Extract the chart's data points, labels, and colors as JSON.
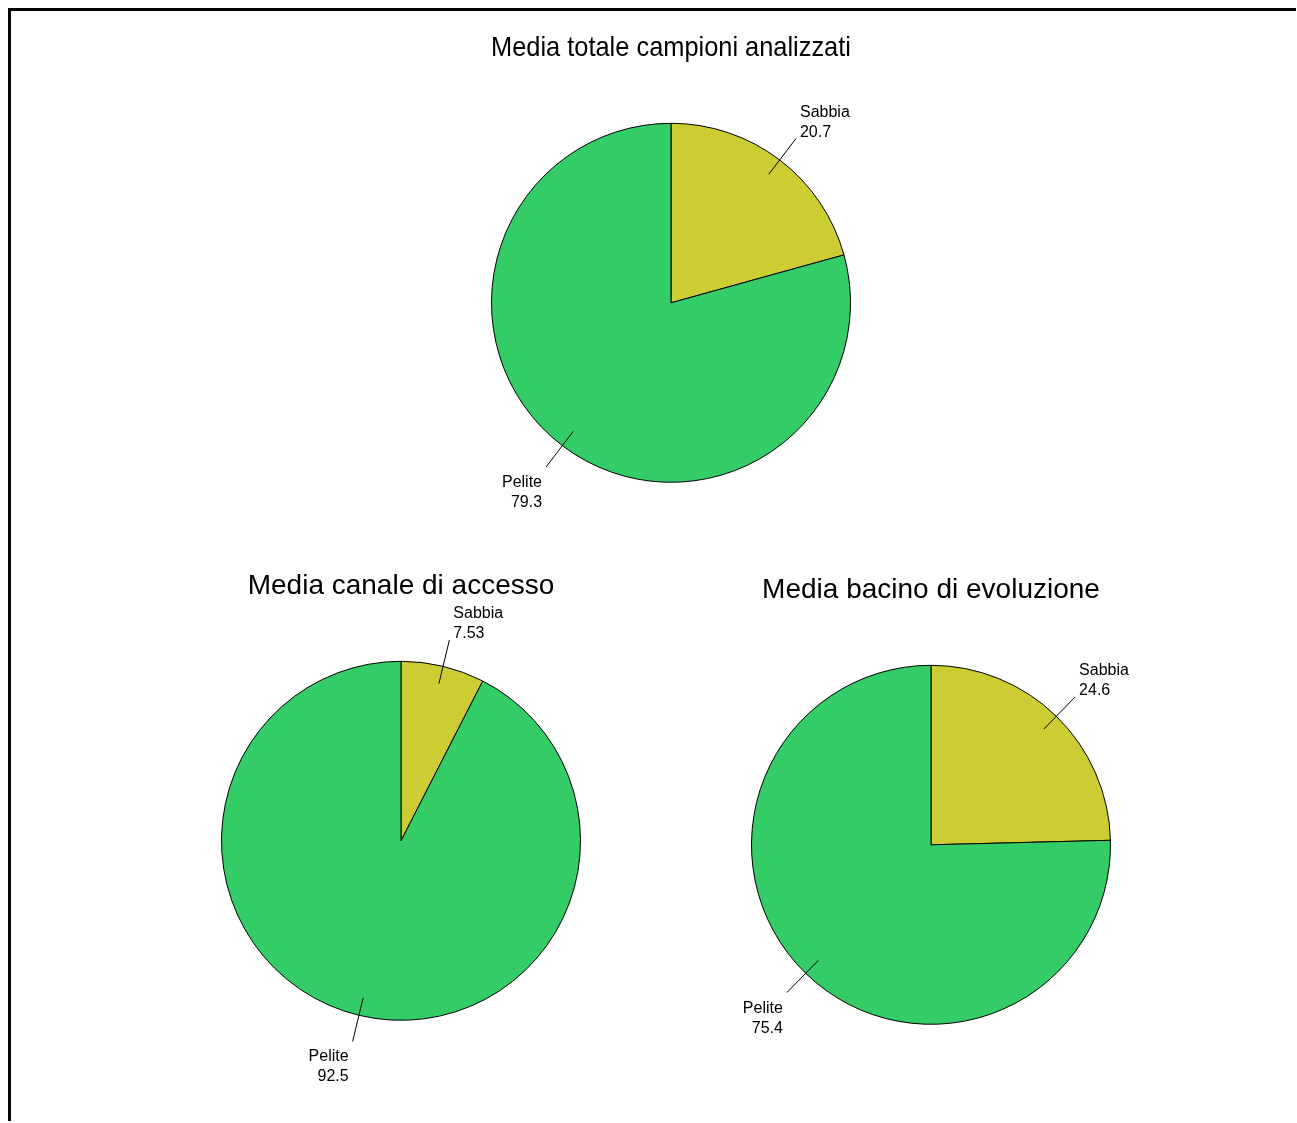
{
  "chart_data": [
    {
      "type": "pie",
      "title": "Media totale campioni analizzati",
      "categories": [
        "Sabbia",
        "Pelite"
      ],
      "values": [
        20.7,
        79.3
      ],
      "colors": [
        "#cccc33",
        "#33cc66"
      ],
      "data_labels": true
    },
    {
      "type": "pie",
      "title": "Media canale di accesso",
      "categories": [
        "Sabbia",
        "Pelite"
      ],
      "values": [
        7.53,
        92.5
      ],
      "colors": [
        "#cccc33",
        "#33cc66"
      ],
      "data_labels": true
    },
    {
      "type": "pie",
      "title": "Media bacino di evoluzione",
      "categories": [
        "Sabbia",
        "Pelite"
      ],
      "values": [
        24.6,
        75.4
      ],
      "colors": [
        "#cccc33",
        "#33cc66"
      ],
      "data_labels": true
    }
  ]
}
